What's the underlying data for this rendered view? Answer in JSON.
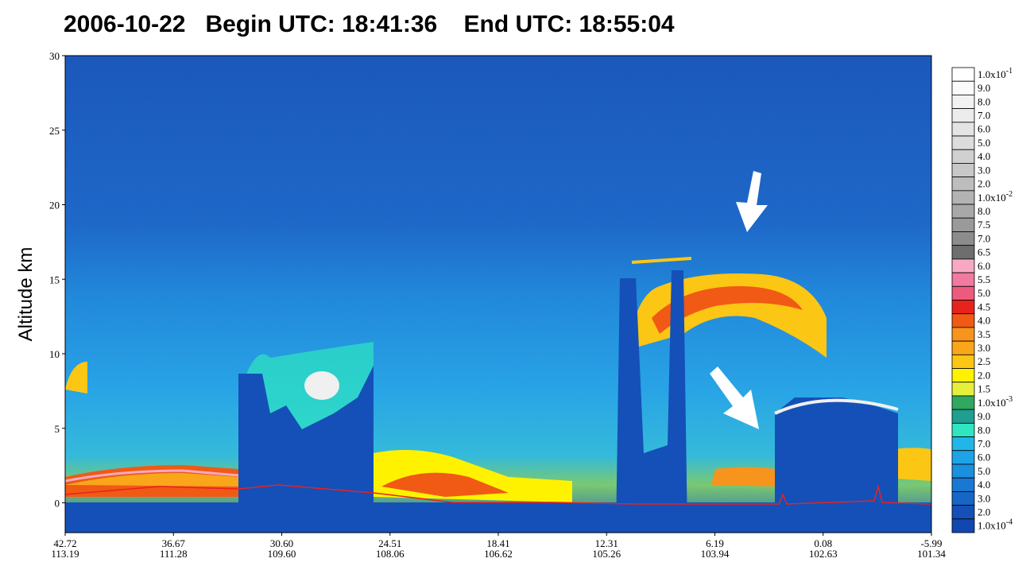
{
  "chart_data": {
    "type": "curtain",
    "title": "2006-10-22   Begin UTC: 18:41:36    End UTC: 18:55:04",
    "y_label": "Altitude km",
    "ylim": [
      -2,
      30
    ],
    "yticks": [
      0,
      5,
      10,
      15,
      20,
      25,
      30
    ],
    "xticks_latitude": [
      "42.72",
      "36.67",
      "30.60",
      "24.51",
      "18.41",
      "12.31",
      "6.19",
      "0.08",
      "-5.99"
    ],
    "xticks_longitude": [
      "113.19",
      "111.28",
      "109.60",
      "108.06",
      "106.62",
      "105.26",
      "103.94",
      "102.63",
      "101.34"
    ],
    "colorbar": [
      {
        "base": "1.0x10",
        "exp": "-1",
        "color": "#ffffff"
      },
      {
        "base": "9.0",
        "color": "#fafafa"
      },
      {
        "base": "8.0",
        "color": "#f2f2f2"
      },
      {
        "base": "7.0",
        "color": "#ececec"
      },
      {
        "base": "6.0",
        "color": "#e4e4e4"
      },
      {
        "base": "5.0",
        "color": "#dcdcdc"
      },
      {
        "base": "4.0",
        "color": "#d0d0d0"
      },
      {
        "base": "3.0",
        "color": "#c8c8c8"
      },
      {
        "base": "2.0",
        "color": "#bdbdbd"
      },
      {
        "base": "1.0x10",
        "exp": "-2",
        "color": "#b3b3b3"
      },
      {
        "base": "8.0",
        "color": "#a8a8a8"
      },
      {
        "base": "7.5",
        "color": "#9a9a9a"
      },
      {
        "base": "7.0",
        "color": "#8c8c8c"
      },
      {
        "base": "6.5",
        "color": "#6e6e6e"
      },
      {
        "base": "6.0",
        "color": "#f7a9c4"
      },
      {
        "base": "5.5",
        "color": "#f07aa0"
      },
      {
        "base": "5.0",
        "color": "#ee5a7e"
      },
      {
        "base": "4.5",
        "color": "#e8231e"
      },
      {
        "base": "4.0",
        "color": "#f05a14"
      },
      {
        "base": "3.5",
        "color": "#f7941d"
      },
      {
        "base": "3.0",
        "color": "#f9a61a"
      },
      {
        "base": "2.5",
        "color": "#fcc614"
      },
      {
        "base": "2.0",
        "color": "#fff200"
      },
      {
        "base": "1.5",
        "color": "#e6f03c"
      },
      {
        "base": "1.0x10",
        "exp": "-3",
        "color": "#2fa860"
      },
      {
        "base": "9.0",
        "color": "#1f9f8f"
      },
      {
        "base": "8.0",
        "color": "#2ee6c0"
      },
      {
        "base": "7.0",
        "color": "#22b5e8"
      },
      {
        "base": "6.0",
        "color": "#1ea3e6"
      },
      {
        "base": "5.0",
        "color": "#1a90df"
      },
      {
        "base": "4.0",
        "color": "#1878d2"
      },
      {
        "base": "3.0",
        "color": "#1666c6"
      },
      {
        "base": "2.0",
        "color": "#1450b8"
      },
      {
        "base": "1.0x10",
        "exp": "-4",
        "color": "#1048b0"
      }
    ]
  }
}
